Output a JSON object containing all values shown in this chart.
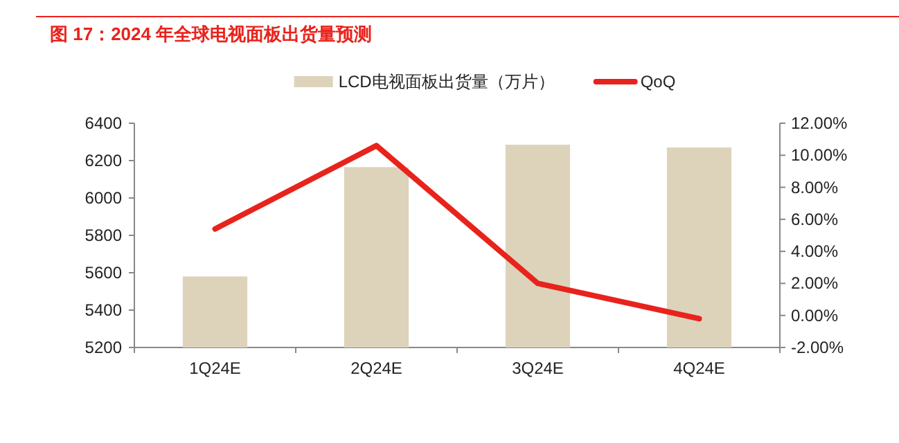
{
  "chart_data": {
    "type": "bar",
    "title": "图 17：2024 年全球电视面板出货量预测",
    "categories": [
      "1Q24E",
      "2Q24E",
      "3Q24E",
      "4Q24E"
    ],
    "series": [
      {
        "name": "LCD电视面板出货量（万片）",
        "color": "#ddd3bb",
        "values": [
          5580,
          6165,
          6285,
          6270
        ]
      },
      {
        "name": "QoQ",
        "type": "line",
        "axis": "y2",
        "color": "#e8231c",
        "values": [
          5.4,
          10.6,
          2.0,
          -0.2
        ]
      }
    ],
    "ylim": [
      5200,
      6400
    ],
    "yticks": [
      5200,
      5400,
      5600,
      5800,
      6000,
      6200,
      6400
    ],
    "y2lim": [
      -2,
      12
    ],
    "y2ticks": [
      {
        "value": -2,
        "label": "-2.00%"
      },
      {
        "value": 0,
        "label": "0.00%"
      },
      {
        "value": 2,
        "label": "2.00%"
      },
      {
        "value": 4,
        "label": "4.00%"
      },
      {
        "value": 6,
        "label": "6.00%"
      },
      {
        "value": 8,
        "label": "8.00%"
      },
      {
        "value": 10,
        "label": "10.00%"
      },
      {
        "value": 12,
        "label": "12.00%"
      }
    ],
    "legend": "top"
  }
}
